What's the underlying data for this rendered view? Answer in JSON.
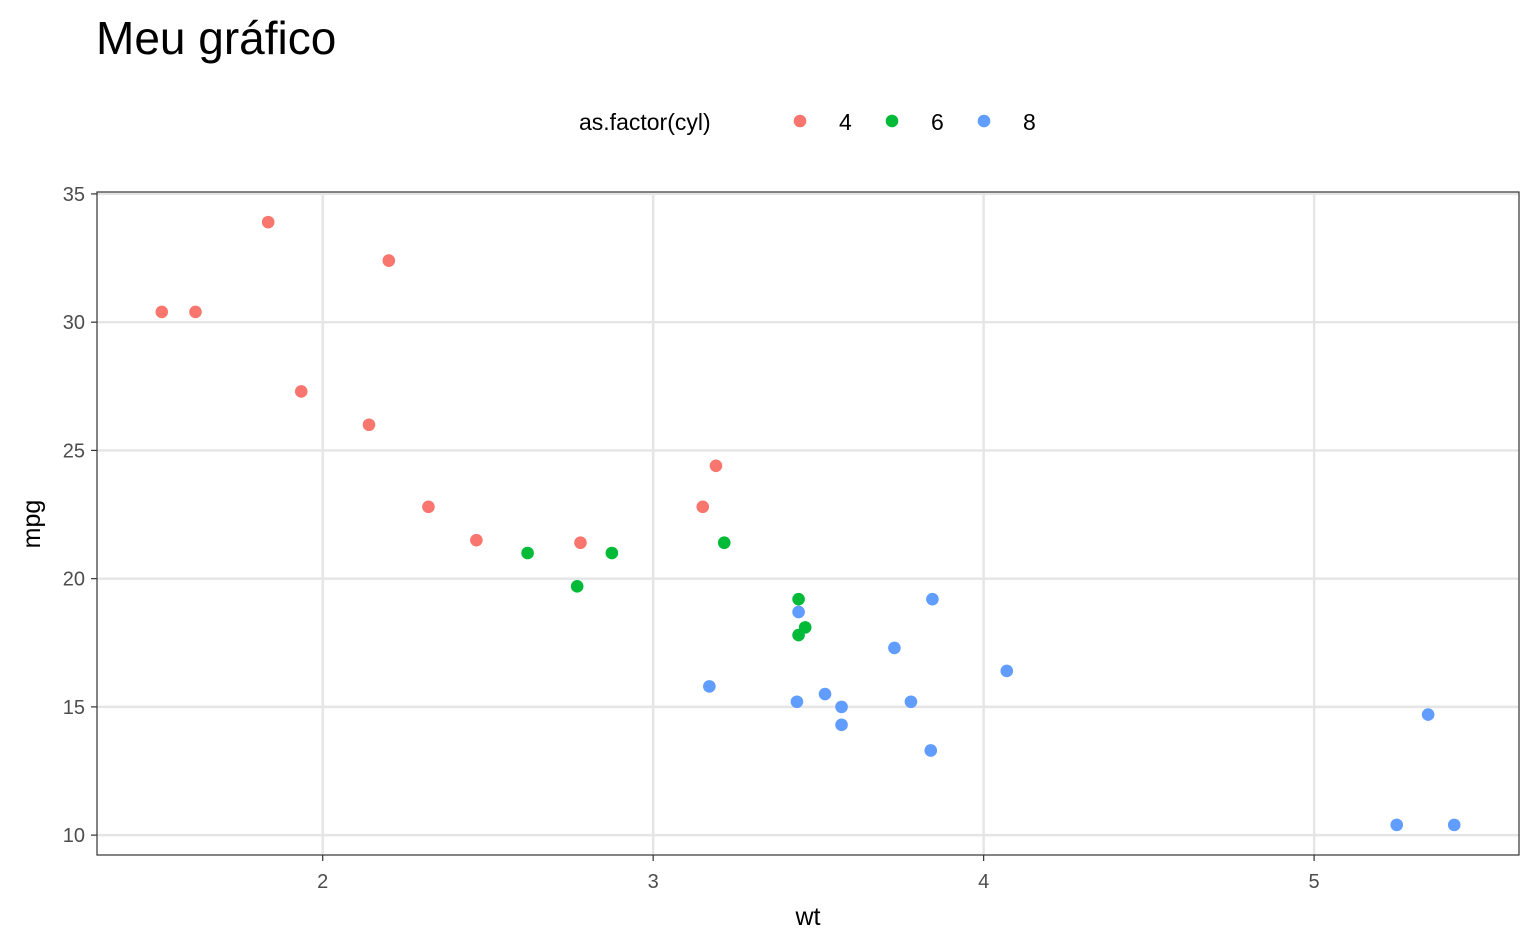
{
  "chart_data": {
    "type": "scatter",
    "title": "Meu gráfico",
    "xlabel": "wt",
    "ylabel": "mpg",
    "xlim": [
      1.317,
      5.62
    ],
    "ylim": [
      9.225,
      35.075
    ],
    "xticks": [
      2,
      3,
      4,
      5
    ],
    "yticks": [
      10,
      15,
      20,
      25,
      30,
      35
    ],
    "grid": true,
    "legend": {
      "title": "as.factor(cyl)",
      "placement": "top",
      "entries": [
        {
          "label": "4",
          "color": "#F8766D"
        },
        {
          "label": "6",
          "color": "#00BA38"
        },
        {
          "label": "8",
          "color": "#619CFF"
        }
      ]
    },
    "series": [
      {
        "name": "4",
        "color": "#F8766D",
        "points": [
          [
            2.32,
            22.8
          ],
          [
            3.19,
            24.4
          ],
          [
            3.15,
            22.8
          ],
          [
            2.2,
            32.4
          ],
          [
            1.615,
            30.4
          ],
          [
            1.835,
            33.9
          ],
          [
            2.465,
            21.5
          ],
          [
            1.935,
            27.3
          ],
          [
            2.14,
            26.0
          ],
          [
            1.513,
            30.4
          ],
          [
            2.78,
            21.4
          ]
        ]
      },
      {
        "name": "6",
        "color": "#00BA38",
        "points": [
          [
            2.62,
            21.0
          ],
          [
            2.875,
            21.0
          ],
          [
            3.215,
            21.4
          ],
          [
            3.46,
            18.1
          ],
          [
            3.44,
            19.2
          ],
          [
            3.44,
            17.8
          ],
          [
            2.77,
            19.7
          ]
        ]
      },
      {
        "name": "8",
        "color": "#619CFF",
        "points": [
          [
            3.44,
            18.7
          ],
          [
            3.57,
            14.3
          ],
          [
            4.07,
            16.4
          ],
          [
            3.73,
            17.3
          ],
          [
            3.78,
            15.2
          ],
          [
            5.25,
            10.4
          ],
          [
            5.424,
            10.4
          ],
          [
            5.345,
            14.7
          ],
          [
            3.52,
            15.5
          ],
          [
            3.435,
            15.2
          ],
          [
            3.84,
            13.3
          ],
          [
            3.845,
            19.2
          ],
          [
            3.17,
            15.8
          ],
          [
            3.57,
            15.0
          ]
        ]
      }
    ]
  }
}
